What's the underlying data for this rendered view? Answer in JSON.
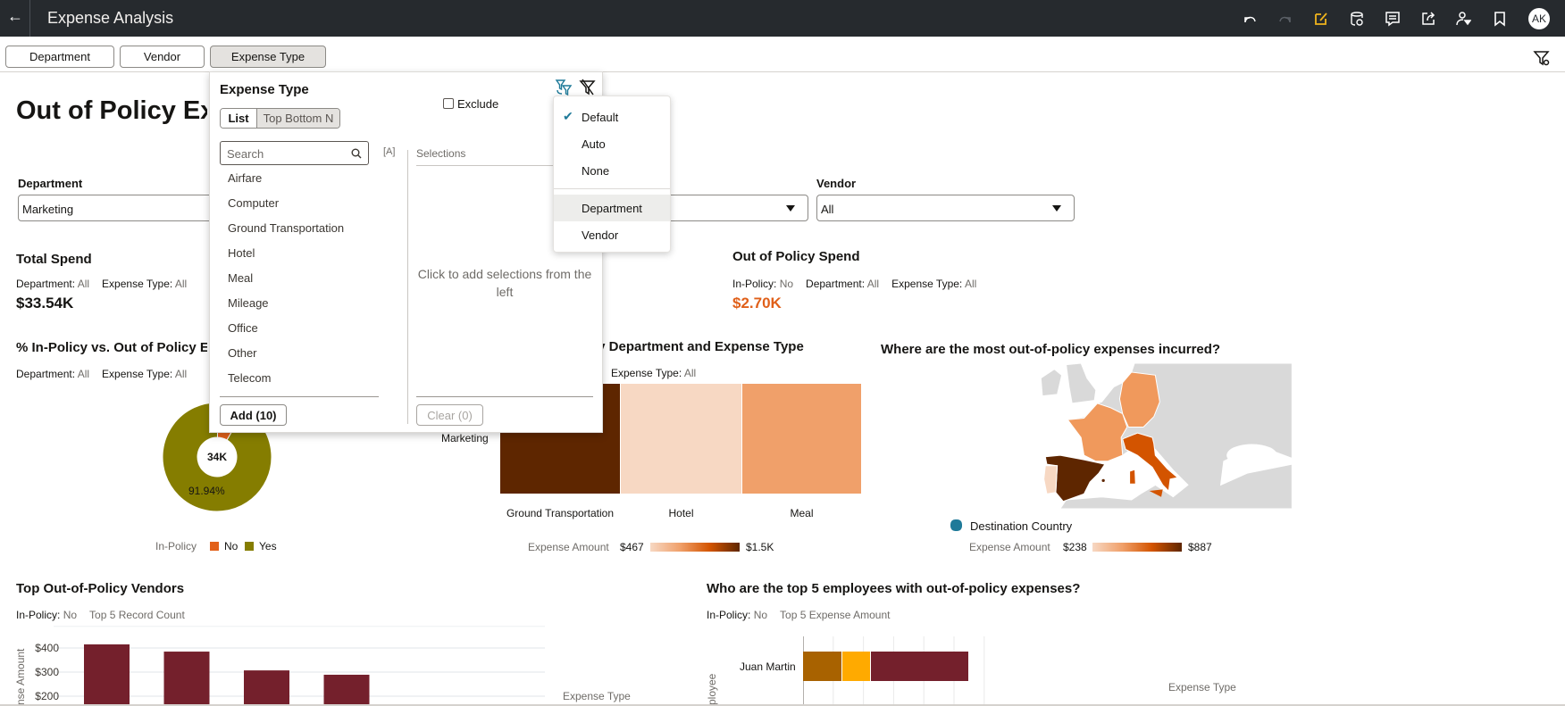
{
  "header": {
    "title": "Expense Analysis",
    "avatar_initials": "AK",
    "icons": [
      "back-arrow",
      "undo",
      "redo",
      "edit",
      "refresh-data",
      "comments",
      "export",
      "user-filter",
      "bookmark"
    ]
  },
  "filter_bar": {
    "buttons": [
      "Department",
      "Vendor",
      "Expense Type"
    ],
    "active": "Expense Type"
  },
  "page": {
    "title": "Out of Policy Expenses",
    "filters": {
      "department": {
        "label": "Department",
        "value": "Marketing"
      },
      "vendor": {
        "label": "Vendor",
        "value": "All"
      }
    }
  },
  "kpis": {
    "total": {
      "title": "Total Spend",
      "sub": [
        {
          "k": "Department:",
          "v": "All"
        },
        {
          "k": "Expense Type:",
          "v": "All"
        }
      ],
      "value": "$33.54K"
    },
    "oop": {
      "title": "Out of Policy Spend",
      "sub": [
        {
          "k": "In-Policy:",
          "v": "No"
        },
        {
          "k": "Department:",
          "v": "All"
        },
        {
          "k": "Expense Type:",
          "v": "All"
        }
      ],
      "value": "$2.70K",
      "color": "#e0601a"
    }
  },
  "donut": {
    "title": "% In-Policy vs. Out of Policy E",
    "sub": [
      {
        "k": "Department:",
        "v": "All"
      },
      {
        "k": "Expense Type:",
        "v": "All"
      }
    ],
    "center_label": "34K",
    "slice_label": "91.94%",
    "legend_title": "In-Policy",
    "slices": [
      {
        "name": "No",
        "pct": 8.06,
        "color": "#e2611a"
      },
      {
        "name": "Yes",
        "pct": 91.94,
        "color": "#857d00"
      }
    ]
  },
  "heatmap": {
    "title": "by Department and Expense Type",
    "sub": [
      {
        "k": "Expense Type:",
        "v": "All"
      }
    ],
    "row": "Marketing",
    "columns": [
      {
        "name": "Ground Transportation",
        "color": "#5e2600"
      },
      {
        "name": "Hotel",
        "color": "#f7d8c3"
      },
      {
        "name": "Meal",
        "color": "#f0a06a"
      }
    ],
    "legend": {
      "title": "Expense Amount",
      "min": "$467",
      "max": "$1.5K"
    }
  },
  "map": {
    "title": "Where are the most out-of-policy expenses incurred?",
    "layer_label": "Destination Country",
    "legend": {
      "title": "Expense Amount",
      "min": "$238",
      "max": "$887"
    },
    "countries": [
      {
        "name": "Spain",
        "color": "#5e2600"
      },
      {
        "name": "Italy",
        "color": "#d35400"
      },
      {
        "name": "France",
        "color": "#f0995c"
      },
      {
        "name": "Germany",
        "color": "#f0995c"
      },
      {
        "name": "Portugal",
        "color": "#f7d8c3"
      }
    ]
  },
  "vendors_chart": {
    "title": "Top Out-of-Policy Vendors",
    "sub": [
      {
        "k": "In-Policy:",
        "v": "No"
      },
      {
        "k": "",
        "v": "Top 5 Record Count"
      }
    ],
    "chart_data": {
      "type": "bar",
      "ylabel": "nse Amount",
      "yticks": [
        "$400",
        "$300",
        "$200"
      ],
      "ytick_values": [
        400,
        300,
        200
      ],
      "values": [
        415,
        385,
        307,
        289
      ],
      "color": "#74202c"
    },
    "legend_title": "Expense Type"
  },
  "employees_chart": {
    "title": "Who are the top 5 employees with out-of-policy expenses?",
    "sub": [
      {
        "k": "In-Policy:",
        "v": "No"
      },
      {
        "k": "",
        "v": "Top 5 Expense Amount"
      }
    ],
    "ylabel": "ployee",
    "chart_data": {
      "type": "bar",
      "orientation": "horizontal",
      "categories": [
        "Juan Martin"
      ],
      "segments": [
        {
          "value": 22,
          "color": "#a86200"
        },
        {
          "value": 16,
          "color": "#ffaa00"
        },
        {
          "value": 55,
          "color": "#74202c"
        }
      ]
    },
    "legend_title": "Expense Type"
  },
  "popup": {
    "title": "Expense Type",
    "modes": [
      "List",
      "Top Bottom N"
    ],
    "active_mode": "List",
    "exclude_label": "Exclude",
    "search_placeholder": "Search",
    "case_toggle": "[A]",
    "selections_label": "Selections",
    "empty_text": "Click to add selections from the left",
    "items": [
      "Airfare",
      "Computer",
      "Ground Transportation",
      "Hotel",
      "Meal",
      "Mileage",
      "Office",
      "Other",
      "Telecom"
    ],
    "add_label": "Add (10)",
    "clear_label": "Clear (0)"
  },
  "limit_menu": {
    "items": [
      {
        "label": "Default",
        "checked": true
      },
      {
        "label": "Auto"
      },
      {
        "label": "None"
      }
    ],
    "fields": [
      {
        "label": "Department",
        "highlighted": true
      },
      {
        "label": "Vendor"
      }
    ]
  }
}
